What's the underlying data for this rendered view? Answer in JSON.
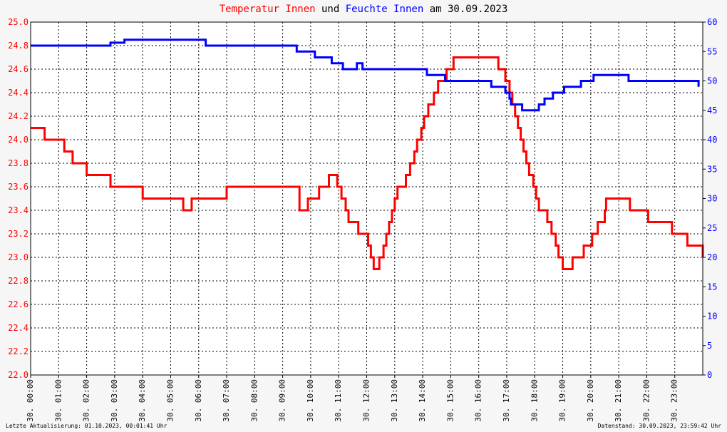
{
  "title": {
    "part1": "Temperatur Innen",
    "part2": " und ",
    "part3": "Feuchte Innen",
    "part4": " am 30.09.2023"
  },
  "footer": {
    "left": "Letzte Aktualisierung: 01.10.2023, 00:01:41 Uhr",
    "right": "Datenstand: 30.09.2023, 23:59:42 Uhr"
  },
  "colors": {
    "temperature": "#ff0000",
    "humidity": "#0000ff",
    "background": "#f6f6f6",
    "title_text": "#000000"
  },
  "chart_data": {
    "type": "line",
    "title": "Temperatur Innen und Feuchte Innen am 30.09.2023",
    "grid": true,
    "x_range_hours": [
      0,
      24
    ],
    "x_tick_labels": [
      "30. 00:00",
      "30. 01:00",
      "30. 02:00",
      "30. 03:00",
      "30. 04:00",
      "30. 05:00",
      "30. 06:00",
      "30. 07:00",
      "30. 08:00",
      "30. 09:00",
      "30. 10:00",
      "30. 11:00",
      "30. 12:00",
      "30. 13:00",
      "30. 14:00",
      "30. 15:00",
      "30. 16:00",
      "30. 17:00",
      "30. 18:00",
      "30. 19:00",
      "30. 20:00",
      "30. 21:00",
      "30. 22:00",
      "30. 23:00"
    ],
    "y_left": {
      "range": [
        22.0,
        25.0
      ],
      "ticks": [
        "22.0",
        "22.2",
        "22.4",
        "22.6",
        "22.8",
        "23.0",
        "23.2",
        "23.4",
        "23.6",
        "23.8",
        "24.0",
        "24.2",
        "24.4",
        "24.6",
        "24.8",
        "25.0"
      ]
    },
    "y_right": {
      "range": [
        0,
        60
      ],
      "ticks": [
        "0",
        "5",
        "10",
        "15",
        "20",
        "25",
        "30",
        "35",
        "40",
        "45",
        "50",
        "55",
        "60"
      ]
    },
    "series": [
      {
        "name": "Temperatur Innen",
        "axis": "left",
        "points": [
          [
            0.0,
            24.1
          ],
          [
            0.45,
            24.1
          ],
          [
            0.5,
            24.0
          ],
          [
            1.15,
            24.0
          ],
          [
            1.2,
            23.9
          ],
          [
            1.45,
            23.9
          ],
          [
            1.5,
            23.8
          ],
          [
            1.95,
            23.8
          ],
          [
            2.0,
            23.7
          ],
          [
            2.8,
            23.7
          ],
          [
            2.85,
            23.6
          ],
          [
            3.9,
            23.6
          ],
          [
            4.0,
            23.5
          ],
          [
            5.35,
            23.5
          ],
          [
            5.45,
            23.4
          ],
          [
            5.65,
            23.4
          ],
          [
            5.75,
            23.5
          ],
          [
            6.9,
            23.5
          ],
          [
            7.0,
            23.6
          ],
          [
            9.45,
            23.6
          ],
          [
            9.6,
            23.4
          ],
          [
            9.8,
            23.4
          ],
          [
            9.9,
            23.5
          ],
          [
            10.25,
            23.5
          ],
          [
            10.3,
            23.6
          ],
          [
            10.6,
            23.6
          ],
          [
            10.65,
            23.7
          ],
          [
            10.85,
            23.7
          ],
          [
            10.95,
            23.6
          ],
          [
            11.1,
            23.5
          ],
          [
            11.25,
            23.4
          ],
          [
            11.35,
            23.3
          ],
          [
            11.65,
            23.3
          ],
          [
            11.7,
            23.2
          ],
          [
            11.95,
            23.2
          ],
          [
            12.05,
            23.1
          ],
          [
            12.15,
            23.0
          ],
          [
            12.25,
            22.9
          ],
          [
            12.4,
            22.9
          ],
          [
            12.45,
            23.0
          ],
          [
            12.6,
            23.1
          ],
          [
            12.7,
            23.2
          ],
          [
            12.8,
            23.3
          ],
          [
            12.9,
            23.4
          ],
          [
            13.0,
            23.5
          ],
          [
            13.1,
            23.6
          ],
          [
            13.3,
            23.6
          ],
          [
            13.4,
            23.7
          ],
          [
            13.55,
            23.8
          ],
          [
            13.7,
            23.9
          ],
          [
            13.8,
            24.0
          ],
          [
            13.95,
            24.1
          ],
          [
            14.05,
            24.2
          ],
          [
            14.2,
            24.3
          ],
          [
            14.4,
            24.4
          ],
          [
            14.55,
            24.5
          ],
          [
            14.75,
            24.5
          ],
          [
            14.85,
            24.6
          ],
          [
            15.05,
            24.6
          ],
          [
            15.1,
            24.7
          ],
          [
            16.6,
            24.7
          ],
          [
            16.7,
            24.6
          ],
          [
            16.85,
            24.6
          ],
          [
            16.95,
            24.5
          ],
          [
            17.1,
            24.4
          ],
          [
            17.2,
            24.3
          ],
          [
            17.3,
            24.2
          ],
          [
            17.4,
            24.1
          ],
          [
            17.5,
            24.0
          ],
          [
            17.6,
            23.9
          ],
          [
            17.7,
            23.8
          ],
          [
            17.8,
            23.7
          ],
          [
            17.95,
            23.6
          ],
          [
            18.05,
            23.5
          ],
          [
            18.15,
            23.4
          ],
          [
            18.35,
            23.4
          ],
          [
            18.45,
            23.3
          ],
          [
            18.6,
            23.2
          ],
          [
            18.75,
            23.1
          ],
          [
            18.85,
            23.0
          ],
          [
            19.0,
            22.9
          ],
          [
            19.25,
            22.9
          ],
          [
            19.35,
            23.0
          ],
          [
            19.65,
            23.0
          ],
          [
            19.75,
            23.1
          ],
          [
            20.0,
            23.1
          ],
          [
            20.05,
            23.2
          ],
          [
            20.25,
            23.3
          ],
          [
            20.45,
            23.3
          ],
          [
            20.5,
            23.4
          ],
          [
            20.55,
            23.5
          ],
          [
            21.3,
            23.5
          ],
          [
            21.4,
            23.4
          ],
          [
            22.0,
            23.4
          ],
          [
            22.05,
            23.3
          ],
          [
            22.85,
            23.3
          ],
          [
            22.9,
            23.2
          ],
          [
            23.4,
            23.2
          ],
          [
            23.45,
            23.1
          ],
          [
            23.95,
            23.1
          ],
          [
            24.0,
            23.0
          ]
        ]
      },
      {
        "name": "Feuchte Innen",
        "axis": "right",
        "points": [
          [
            0.0,
            56
          ],
          [
            2.8,
            56
          ],
          [
            2.85,
            56.5
          ],
          [
            3.3,
            56.5
          ],
          [
            3.35,
            57
          ],
          [
            6.2,
            57
          ],
          [
            6.25,
            56
          ],
          [
            9.45,
            56
          ],
          [
            9.5,
            55
          ],
          [
            10.1,
            55
          ],
          [
            10.15,
            54
          ],
          [
            10.7,
            54
          ],
          [
            10.75,
            53
          ],
          [
            11.1,
            53
          ],
          [
            11.15,
            52
          ],
          [
            11.6,
            52
          ],
          [
            11.65,
            53
          ],
          [
            11.8,
            53
          ],
          [
            11.85,
            52
          ],
          [
            14.1,
            52
          ],
          [
            14.15,
            51
          ],
          [
            14.75,
            51
          ],
          [
            14.8,
            50
          ],
          [
            16.4,
            50
          ],
          [
            16.45,
            49
          ],
          [
            16.9,
            49
          ],
          [
            16.95,
            48
          ],
          [
            17.1,
            47
          ],
          [
            17.15,
            46
          ],
          [
            17.5,
            46
          ],
          [
            17.55,
            45
          ],
          [
            18.05,
            45
          ],
          [
            18.15,
            46
          ],
          [
            18.3,
            46
          ],
          [
            18.35,
            47
          ],
          [
            18.6,
            47
          ],
          [
            18.65,
            48
          ],
          [
            19.0,
            48
          ],
          [
            19.05,
            49
          ],
          [
            19.6,
            49
          ],
          [
            19.65,
            50
          ],
          [
            20.05,
            50
          ],
          [
            20.1,
            51
          ],
          [
            21.3,
            51
          ],
          [
            21.35,
            50
          ],
          [
            23.8,
            50
          ],
          [
            23.85,
            49
          ]
        ]
      }
    ]
  }
}
